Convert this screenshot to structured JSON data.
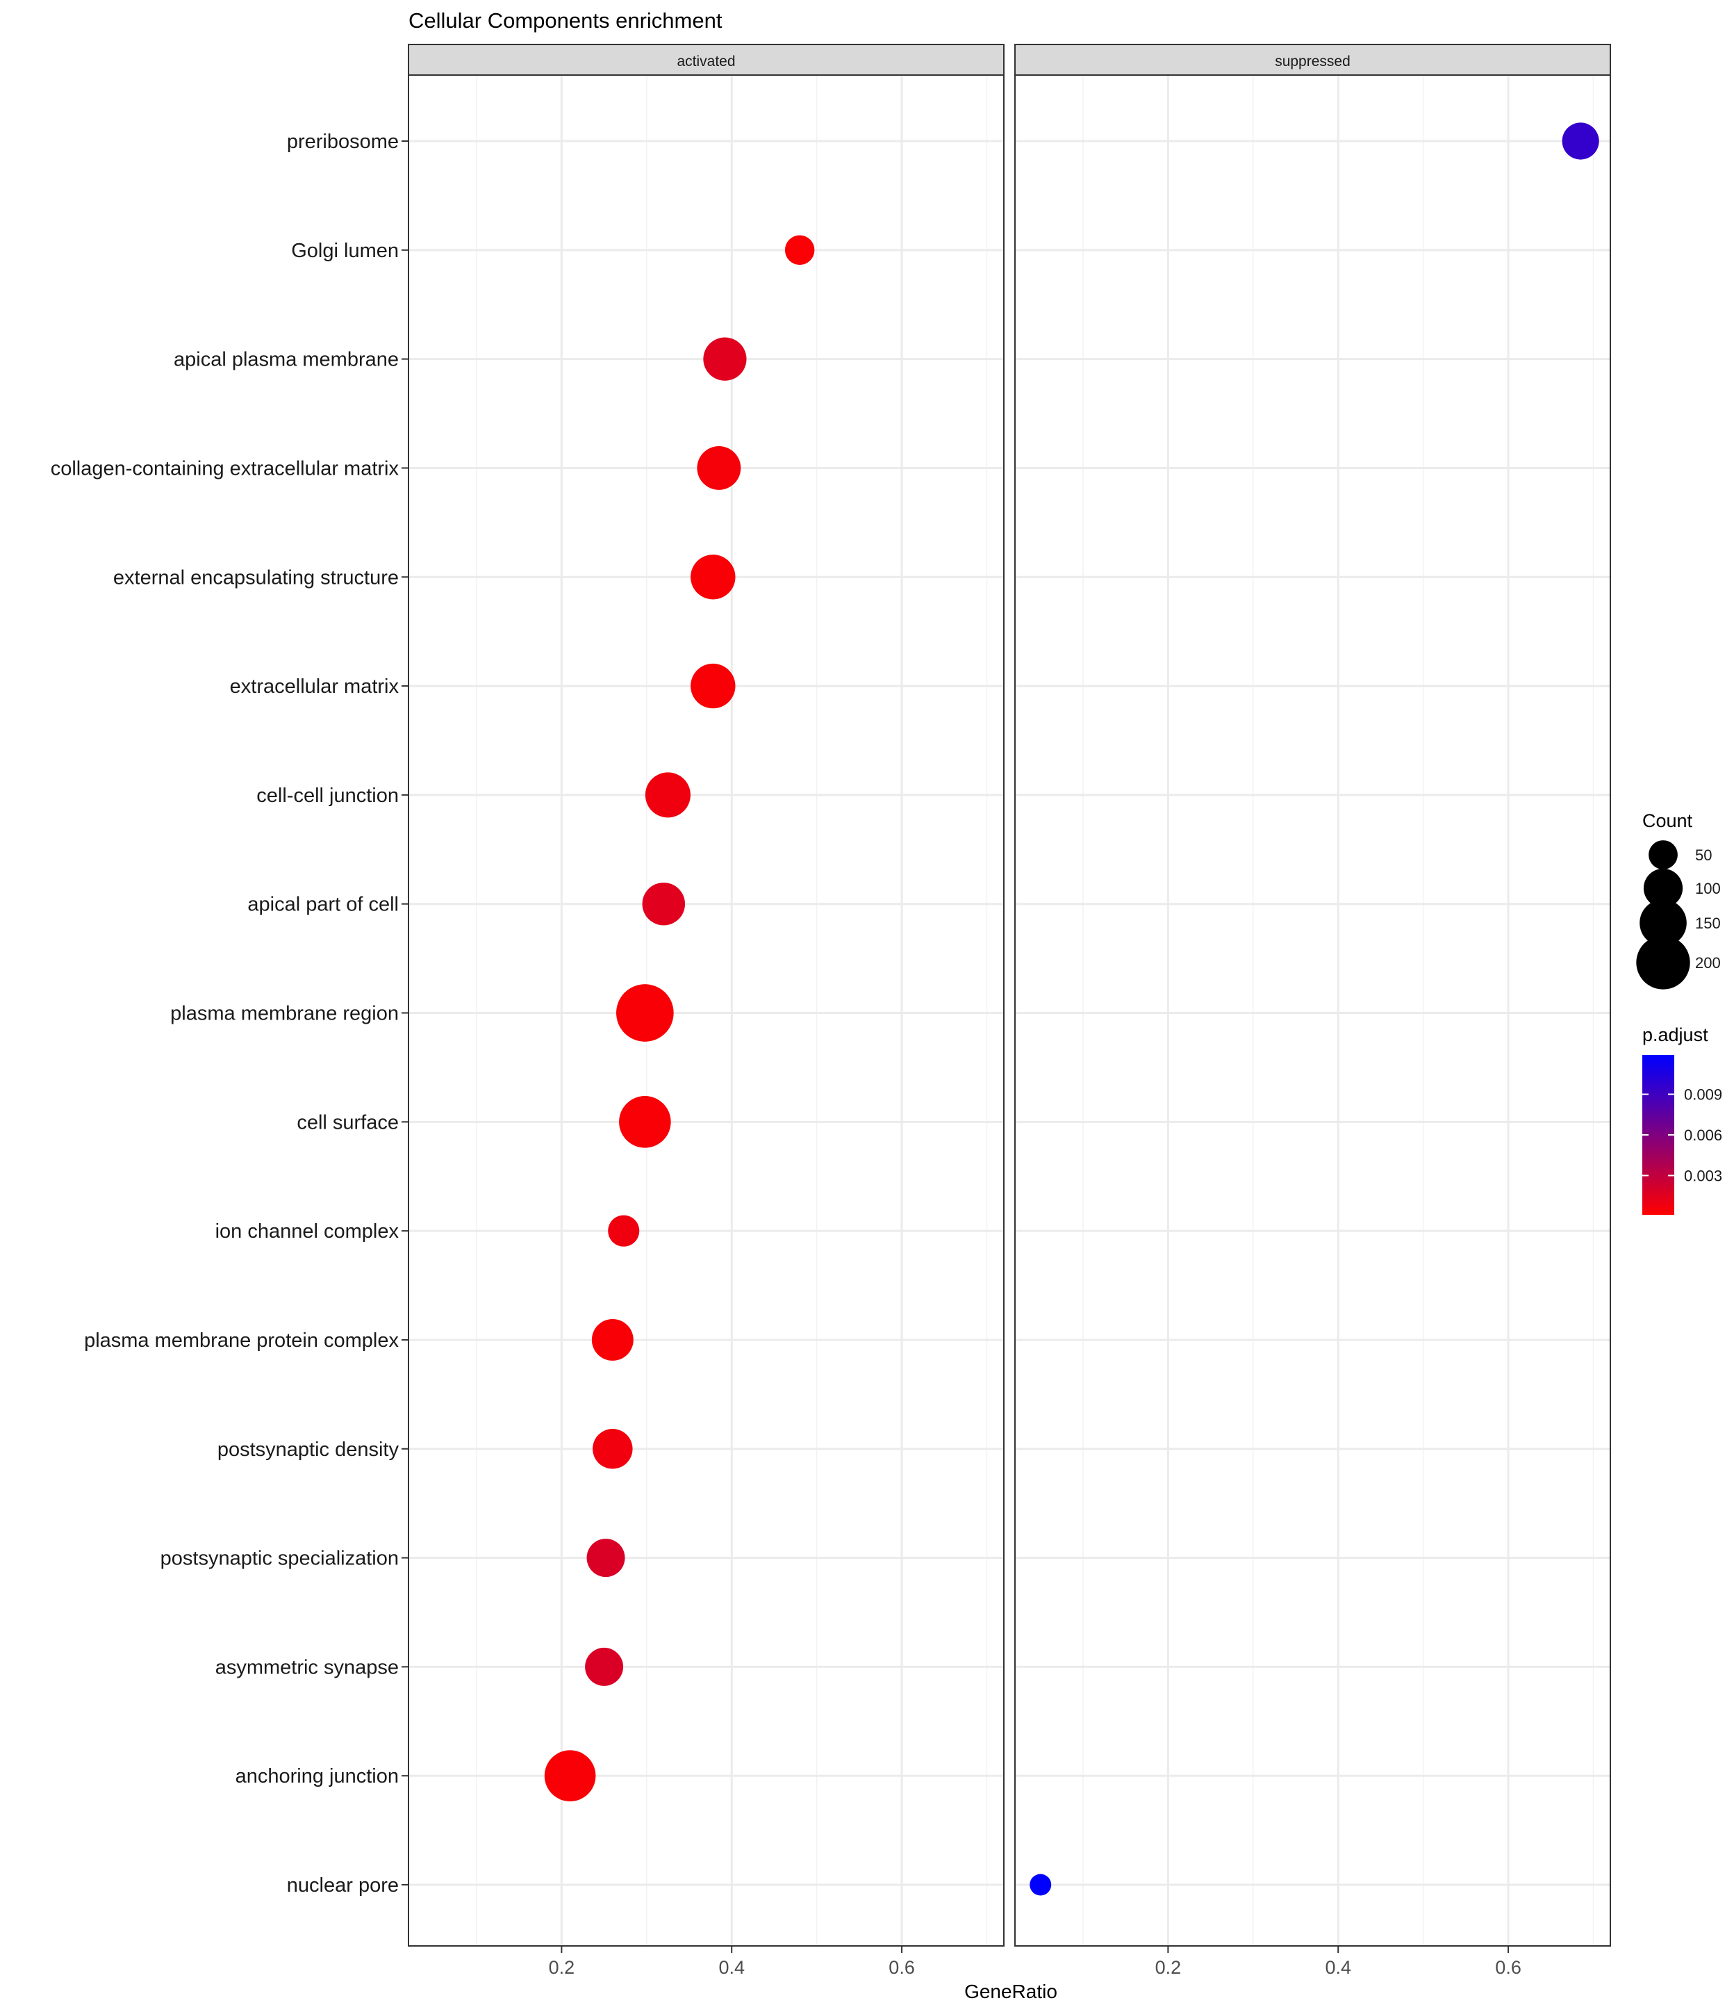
{
  "chart_data": {
    "type": "scatter",
    "title": "Cellular Components enrichment",
    "xlabel": "GeneRatio",
    "ylabel": "",
    "xlim": [
      0.02,
      0.72
    ],
    "x_ticks": [
      0.2,
      0.4,
      0.6
    ],
    "x_tick_labels": [
      "0.2",
      "0.4",
      "0.6"
    ],
    "panels": [
      "activated",
      "suppressed"
    ],
    "categories": [
      "preribosome",
      "Golgi lumen",
      "apical plasma membrane",
      "collagen-containing extracellular matrix",
      "external encapsulating structure",
      "extracellular matrix",
      "cell-cell junction",
      "apical part of cell",
      "plasma membrane region",
      "cell surface",
      "ion channel complex",
      "plasma membrane protein complex",
      "postsynaptic density",
      "postsynaptic specialization",
      "asymmetric synapse",
      "anchoring junction",
      "nuclear pore"
    ],
    "points": [
      {
        "panel": "suppressed",
        "term": "preribosome",
        "gene_ratio": 0.685,
        "count": 88,
        "p_adjust": 0.0095
      },
      {
        "panel": "activated",
        "term": "Golgi lumen",
        "gene_ratio": 0.48,
        "count": 52,
        "p_adjust": 0.0003
      },
      {
        "panel": "activated",
        "term": "apical plasma membrane",
        "gene_ratio": 0.392,
        "count": 125,
        "p_adjust": 0.0015
      },
      {
        "panel": "activated",
        "term": "collagen-containing extracellular matrix",
        "gene_ratio": 0.385,
        "count": 128,
        "p_adjust": 0.0005
      },
      {
        "panel": "activated",
        "term": "external encapsulating structure",
        "gene_ratio": 0.378,
        "count": 135,
        "p_adjust": 0.0004
      },
      {
        "panel": "activated",
        "term": "extracellular matrix",
        "gene_ratio": 0.378,
        "count": 135,
        "p_adjust": 0.0004
      },
      {
        "panel": "activated",
        "term": "cell-cell junction",
        "gene_ratio": 0.325,
        "count": 138,
        "p_adjust": 0.0008
      },
      {
        "panel": "activated",
        "term": "apical part of cell",
        "gene_ratio": 0.32,
        "count": 122,
        "p_adjust": 0.0015
      },
      {
        "panel": "activated",
        "term": "plasma membrane region",
        "gene_ratio": 0.298,
        "count": 230,
        "p_adjust": 0.0004
      },
      {
        "panel": "activated",
        "term": "cell surface",
        "gene_ratio": 0.298,
        "count": 185,
        "p_adjust": 0.0004
      },
      {
        "panel": "activated",
        "term": "ion channel complex",
        "gene_ratio": 0.273,
        "count": 60,
        "p_adjust": 0.0008
      },
      {
        "panel": "activated",
        "term": "plasma membrane protein complex",
        "gene_ratio": 0.26,
        "count": 115,
        "p_adjust": 0.0004
      },
      {
        "panel": "activated",
        "term": "postsynaptic density",
        "gene_ratio": 0.26,
        "count": 105,
        "p_adjust": 0.0007
      },
      {
        "panel": "activated",
        "term": "postsynaptic specialization",
        "gene_ratio": 0.252,
        "count": 95,
        "p_adjust": 0.0018
      },
      {
        "panel": "activated",
        "term": "asymmetric synapse",
        "gene_ratio": 0.25,
        "count": 95,
        "p_adjust": 0.0018
      },
      {
        "panel": "activated",
        "term": "anchoring junction",
        "gene_ratio": 0.21,
        "count": 180,
        "p_adjust": 0.0004
      },
      {
        "panel": "suppressed",
        "term": "nuclear pore",
        "gene_ratio": 0.05,
        "count": 22,
        "p_adjust": 0.0119
      }
    ],
    "size_legend": {
      "title": "Count",
      "breaks": [
        50,
        100,
        150,
        200
      ],
      "labels": [
        "50",
        "100",
        "150",
        "200"
      ]
    },
    "color_legend": {
      "title": "p.adjust",
      "low_color": "#ff0000",
      "high_color": "#0000ff",
      "range": [
        0.0001,
        0.0119
      ],
      "breaks": [
        0.003,
        0.006,
        0.009
      ],
      "labels": [
        "0.003",
        "0.006",
        "0.009"
      ]
    },
    "grid": true,
    "legend_position": "right"
  }
}
